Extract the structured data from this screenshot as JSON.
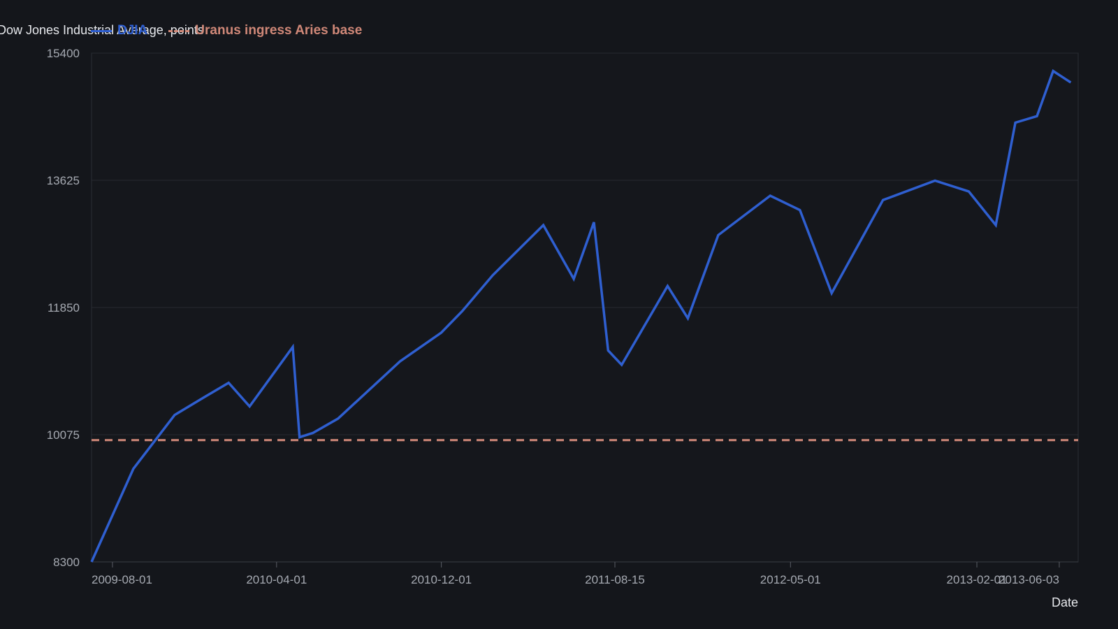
{
  "chart_data": {
    "type": "line",
    "ylabel": "Dow Jones Industrial Average, points",
    "xlabel": "Date",
    "ylim": [
      8300,
      15400
    ],
    "xlim": [
      "2009-07-01",
      "2013-07-01"
    ],
    "grid": true,
    "legend_position": "top-left",
    "y_ticks": [
      "8300",
      "10075",
      "11850",
      "13625",
      "15400"
    ],
    "x_ticks": [
      "2009-08-01",
      "2010-04-01",
      "2010-12-01",
      "2011-08-15",
      "2012-05-01",
      "2013-02-01",
      "2013-06-03"
    ],
    "series": [
      {
        "name": "DJIA",
        "color": "#2f5fd0",
        "style": "solid",
        "x": [
          "2009-07-01",
          "2009-09-01",
          "2009-11-01",
          "2009-12-15",
          "2010-01-20",
          "2010-02-20",
          "2010-04-25",
          "2010-05-05",
          "2010-05-25",
          "2010-07-01",
          "2010-10-01",
          "2010-12-01",
          "2011-01-01",
          "2011-02-15",
          "2011-05-01",
          "2011-06-15",
          "2011-07-15",
          "2011-08-05",
          "2011-08-25",
          "2011-11-01",
          "2011-12-01",
          "2012-01-15",
          "2012-04-01",
          "2012-05-15",
          "2012-07-01",
          "2012-09-15",
          "2012-12-01",
          "2013-01-20",
          "2013-03-01",
          "2013-03-30",
          "2013-05-01",
          "2013-05-25",
          "2013-06-20"
        ],
        "y": [
          8300,
          9600,
          10350,
          10600,
          10800,
          10470,
          11300,
          10040,
          10100,
          10300,
          11100,
          11500,
          11800,
          12300,
          13000,
          12250,
          13040,
          11250,
          11050,
          12150,
          11700,
          12860,
          13410,
          13210,
          12050,
          13350,
          13620,
          13470,
          13000,
          14430,
          14520,
          15150,
          14990
        ]
      },
      {
        "name": "Uranus ingress Aries base",
        "color": "#d08878",
        "style": "dashed",
        "x": [
          "2009-07-01",
          "2013-07-01"
        ],
        "y": [
          10000,
          10000
        ]
      }
    ]
  }
}
